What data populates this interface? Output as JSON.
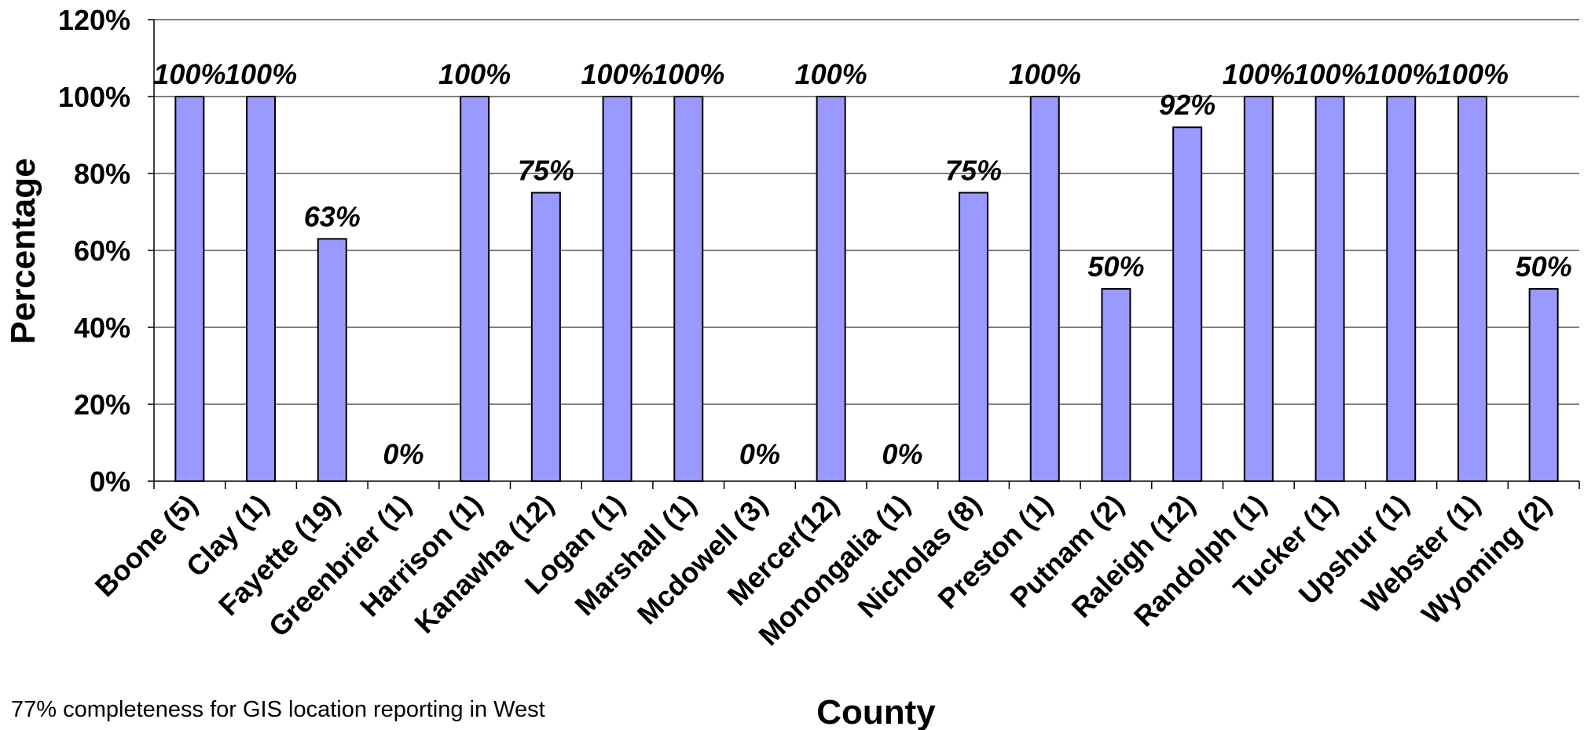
{
  "chart_data": {
    "type": "bar",
    "xlabel": "County",
    "ylabel": "Percentage",
    "ylim": [
      0,
      120
    ],
    "yticks": [
      "0%",
      "20%",
      "40%",
      "60%",
      "80%",
      "100%",
      "120%"
    ],
    "grid": true,
    "bar_color": "#9999ff",
    "categories": [
      "Boone (5)",
      "Clay (1)",
      "Fayette (19)",
      "Greenbrier (1)",
      "Harrison (1)",
      "Kanawha (12)",
      "Logan (1)",
      "Marshall (1)",
      "Mcdowell (3)",
      "Mercer(12)",
      "Monongalia (1)",
      "Nicholas (8)",
      "Preston (1)",
      "Putnam (2)",
      "Raleigh (12)",
      "Randolph (1)",
      "Tucker (1)",
      "Upshur (1)",
      "Webster (1)",
      "Wyoming (2)"
    ],
    "values": [
      100,
      100,
      63,
      0,
      100,
      75,
      100,
      100,
      0,
      100,
      0,
      75,
      100,
      50,
      92,
      100,
      100,
      100,
      100,
      50
    ],
    "labels": [
      "100%",
      "100%",
      "63%",
      "0%",
      "100%",
      "75%",
      "100%",
      "100%",
      "0%",
      "100%",
      "0%",
      "75%",
      "100%",
      "50%",
      "92%",
      "100%",
      "100%",
      "100%",
      "100%",
      "50%"
    ]
  },
  "footnote": "77% completeness for GIS location reporting in West"
}
